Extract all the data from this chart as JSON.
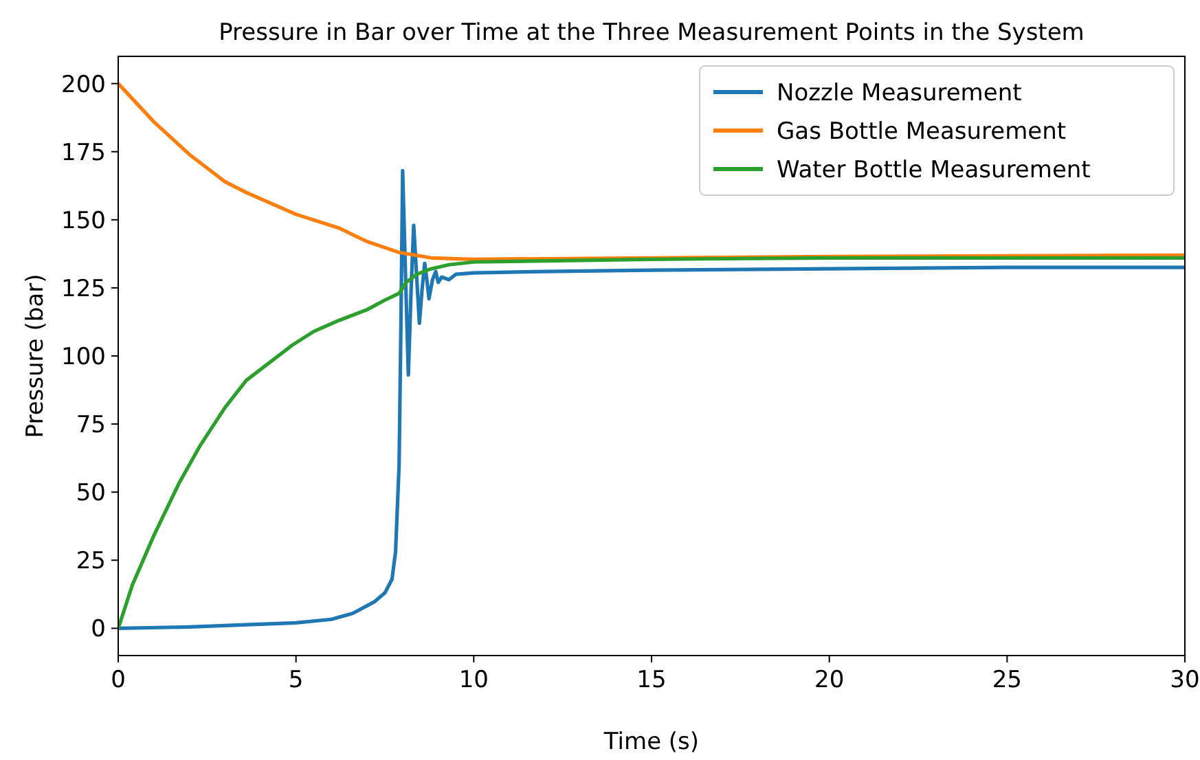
{
  "chart_data": {
    "type": "line",
    "title": "Pressure in Bar over Time at the Three Measurement Points in the System",
    "xlabel": "Time (s)",
    "ylabel": "Pressure (bar)",
    "xlim": [
      0,
      30
    ],
    "ylim": [
      -10,
      210
    ],
    "xticks": [
      0,
      5,
      10,
      15,
      20,
      25,
      30
    ],
    "yticks": [
      0,
      25,
      50,
      75,
      100,
      125,
      150,
      175,
      200
    ],
    "grid": false,
    "legend": "top right",
    "marker": "none",
    "line_style": "solid",
    "series": [
      {
        "name": "Nozzle Measurement",
        "color": "#1f77b4",
        "x": [
          0,
          2,
          4,
          5,
          6,
          6.6,
          7.2,
          7.5,
          7.7,
          7.8,
          7.9,
          7.95,
          8.0,
          8.08,
          8.16,
          8.24,
          8.31,
          8.39,
          8.47,
          8.55,
          8.62,
          8.68,
          8.74,
          8.84,
          8.93,
          9.0,
          9.1,
          9.3,
          9.5,
          10,
          12,
          15,
          20,
          25,
          30
        ],
        "values": [
          0,
          0.5,
          1.5,
          2,
          3.3,
          5.5,
          9.7,
          13,
          18,
          28,
          60,
          110,
          168,
          130,
          93,
          125,
          148,
          130,
          112,
          125,
          134,
          128,
          121,
          128,
          131,
          127,
          129,
          128,
          130,
          130.5,
          131,
          131.5,
          132,
          132.5,
          132.5
        ]
      },
      {
        "name": "Gas Bottle Measurement",
        "color": "#ff7f0e",
        "x": [
          0,
          1,
          2,
          3,
          3.6,
          5,
          6.2,
          7,
          7.9,
          8.8,
          10,
          15,
          20,
          30
        ],
        "values": [
          200,
          186,
          174,
          164,
          160,
          152,
          147,
          142,
          138,
          136,
          135.5,
          136,
          136.5,
          137
        ]
      },
      {
        "name": "Water Bottle Measurement",
        "color": "#2ca02c",
        "x": [
          0,
          0.4,
          1,
          1.7,
          2.3,
          3,
          3.6,
          4.3,
          4.9,
          5.5,
          6.2,
          7,
          7.5,
          7.9,
          8.1,
          8.4,
          8.8,
          9.3,
          10,
          15,
          20,
          30
        ],
        "values": [
          0,
          16,
          34,
          53,
          67,
          81,
          91,
          98,
          104,
          109,
          113,
          117,
          120.5,
          123,
          127,
          130,
          132,
          133.5,
          134.5,
          135.5,
          136,
          136
        ]
      }
    ]
  }
}
